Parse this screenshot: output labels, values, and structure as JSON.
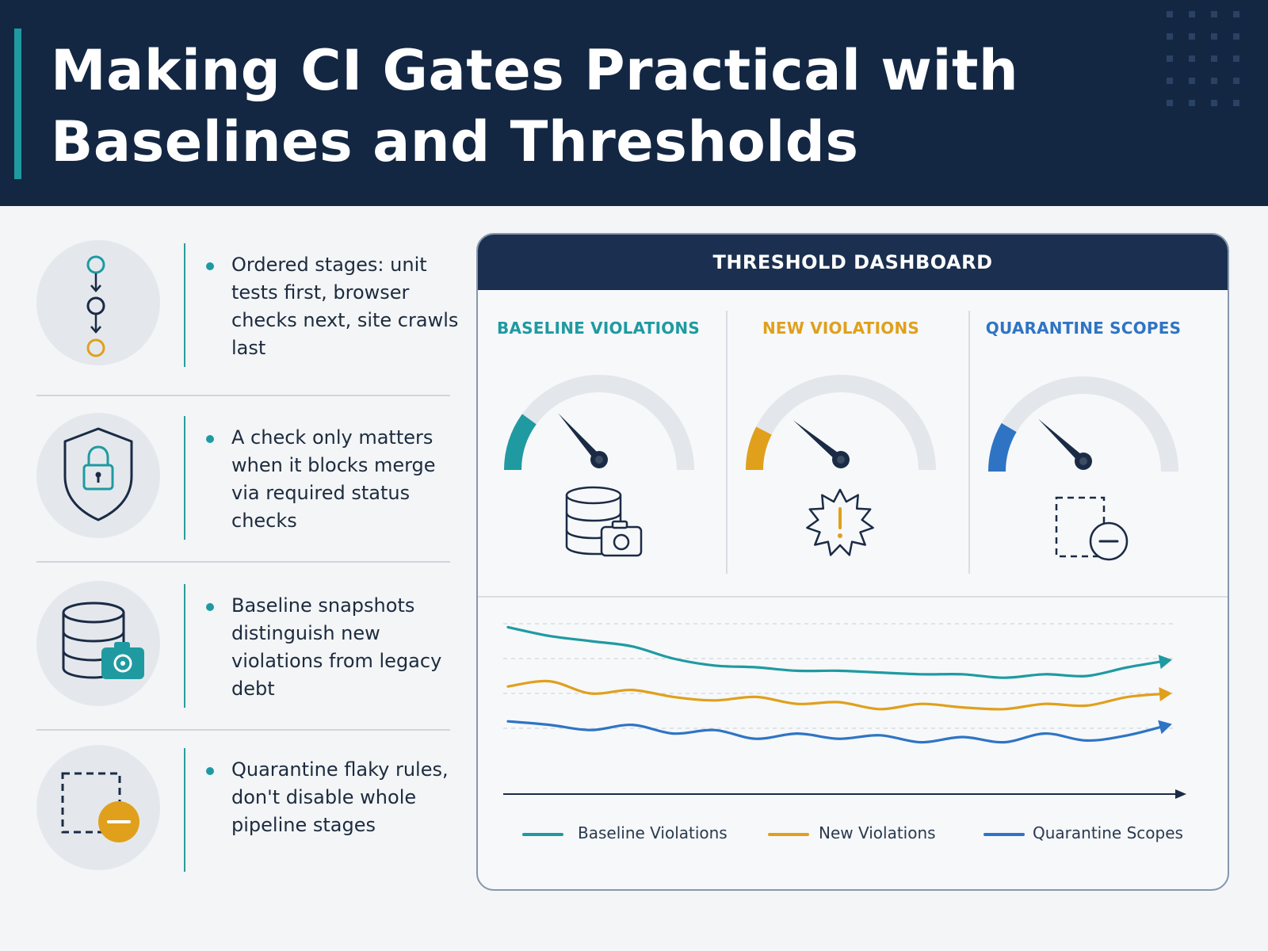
{
  "header": {
    "title": "Making CI Gates Practical with Baselines and Thresholds"
  },
  "points": [
    {
      "icon": "pipeline-stages-icon",
      "text": "Ordered stages: unit tests first, browser checks next, site crawls last"
    },
    {
      "icon": "shield-lock-icon",
      "text": "A check only matters when it blocks merge via required status checks"
    },
    {
      "icon": "database-camera-icon",
      "text": "Baseline snapshots distinguish new violations from legacy debt"
    },
    {
      "icon": "quarantine-minus-icon",
      "text": "Quarantine flaky rules, don't disable whole pipeline stages"
    }
  ],
  "dashboard": {
    "title": "THRESHOLD DASHBOARD",
    "gauges": [
      {
        "label": "BASELINE VIOLATIONS",
        "color": "#1f9aa1",
        "level": 0.2,
        "icon": "database-camera-icon"
      },
      {
        "label": "NEW VIOLATIONS",
        "color": "#e0a01c",
        "level": 0.15,
        "icon": "warning-burst-icon"
      },
      {
        "label": "QUARANTINE SCOPES",
        "color": "#2f74c4",
        "level": 0.17,
        "icon": "quarantine-minus-icon"
      }
    ]
  },
  "chart_data": {
    "type": "line",
    "x": [
      0,
      1,
      2,
      3,
      4,
      5,
      6,
      7,
      8,
      9,
      10,
      11,
      12,
      13,
      14,
      15,
      16
    ],
    "ylim": [
      0,
      10
    ],
    "grid": true,
    "legend": "bottom",
    "series": [
      {
        "name": "Baseline Violations",
        "color": "#1f9aa1",
        "values": [
          9.3,
          8.8,
          8.5,
          8.2,
          7.5,
          7.1,
          7.0,
          6.8,
          6.8,
          6.7,
          6.6,
          6.6,
          6.4,
          6.6,
          6.5,
          7.0,
          7.4
        ]
      },
      {
        "name": "New Violations",
        "color": "#e0a01c",
        "values": [
          5.9,
          6.2,
          5.5,
          5.7,
          5.3,
          5.1,
          5.3,
          4.9,
          5.0,
          4.6,
          4.9,
          4.7,
          4.6,
          4.9,
          4.8,
          5.3,
          5.5
        ]
      },
      {
        "name": "Quarantine Scopes",
        "color": "#2f74c4",
        "values": [
          3.9,
          3.7,
          3.4,
          3.7,
          3.2,
          3.4,
          2.9,
          3.2,
          2.9,
          3.1,
          2.7,
          3.0,
          2.7,
          3.2,
          2.8,
          3.1,
          3.7
        ]
      }
    ]
  }
}
